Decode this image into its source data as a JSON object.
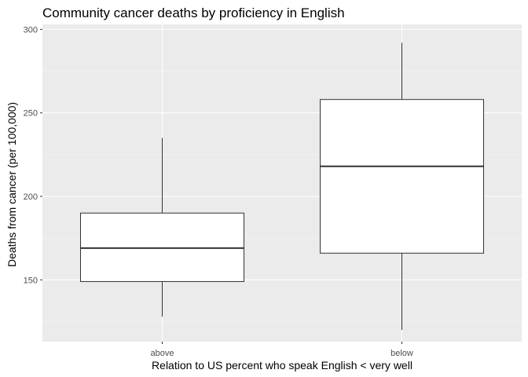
{
  "chart_data": {
    "type": "boxplot",
    "title": "Community cancer deaths by proficiency in English",
    "xlabel": "Relation to US percent who speak English < very well",
    "ylabel": "Deaths from cancer (per 100,000)",
    "ylim": [
      113,
      303
    ],
    "y_ticks": [
      150,
      200,
      250,
      300
    ],
    "y_minor_ticks": [
      125,
      175,
      225,
      275
    ],
    "grid": true,
    "categories": [
      "above",
      "below"
    ],
    "boxes": [
      {
        "category": "above",
        "whisker_low": 128,
        "q1": 149,
        "median": 169,
        "q3": 190,
        "whisker_high": 235
      },
      {
        "category": "below",
        "whisker_low": 120,
        "q1": 166,
        "median": 218,
        "q3": 258,
        "whisker_high": 292
      }
    ],
    "colors": {
      "panel_background": "#ebebeb",
      "grid_major": "#ffffff",
      "grid_minor": "#f5f5f5",
      "box_fill": "#ffffff",
      "box_outline": "#333333",
      "tick_text": "#4d4d4d"
    }
  }
}
